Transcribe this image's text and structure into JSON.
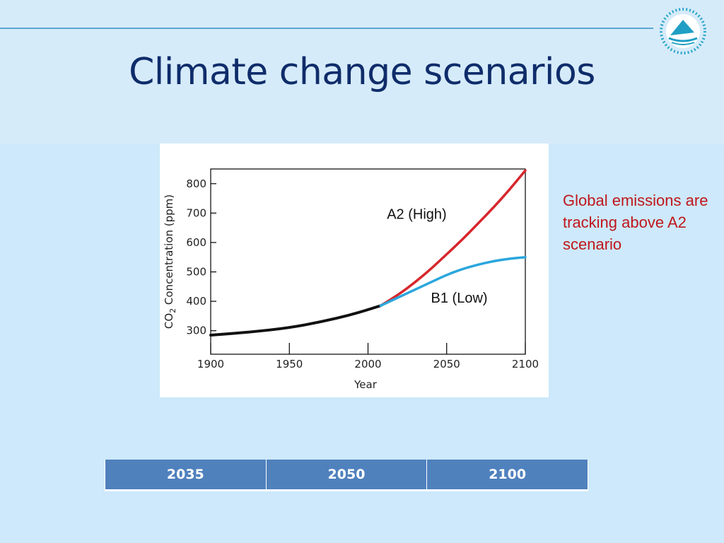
{
  "slide": {
    "title": "Climate change scenarios",
    "annotation": "Global emissions are tracking above A2 scenario"
  },
  "colors": {
    "title": "#0f2c6a",
    "annotation": "#c0161c",
    "historical": "#111111",
    "a2": "#d7262c",
    "b1": "#2aa6dc",
    "table_header": "#4f81bd"
  },
  "logo": {
    "icon": "sailboat-emblem-icon"
  },
  "table": {
    "headers": [
      "2035",
      "2050",
      "2100"
    ]
  },
  "chart_data": {
    "type": "line",
    "xlabel": "Year",
    "ylabel": "CO2 Concentration (ppm)",
    "ylabel_main": "CO",
    "ylabel_sub": "2",
    "ylabel_rest": " Concentration (ppm)",
    "xlim": [
      1900,
      2100
    ],
    "ylim": [
      220,
      850
    ],
    "x_ticks": [
      1900,
      1950,
      2000,
      2050,
      2100
    ],
    "y_ticks": [
      300,
      400,
      500,
      600,
      700,
      800
    ],
    "grid": false,
    "series": [
      {
        "key": "historical",
        "x": [
          1900,
          1925,
          1950,
          1970,
          1990,
          2008
        ],
        "y": [
          285,
          295,
          310,
          330,
          355,
          385
        ]
      },
      {
        "key": "a2",
        "name": "A2  (High)",
        "x": [
          2008,
          2020,
          2030,
          2040,
          2050,
          2060,
          2070,
          2080,
          2090,
          2100
        ],
        "y": [
          385,
          425,
          465,
          510,
          560,
          610,
          665,
          720,
          780,
          845
        ]
      },
      {
        "key": "b1",
        "name": "B1  (Low)",
        "x": [
          2008,
          2020,
          2030,
          2040,
          2050,
          2060,
          2070,
          2080,
          2090,
          2100
        ],
        "y": [
          385,
          415,
          440,
          465,
          490,
          510,
          525,
          537,
          545,
          550
        ]
      }
    ]
  }
}
